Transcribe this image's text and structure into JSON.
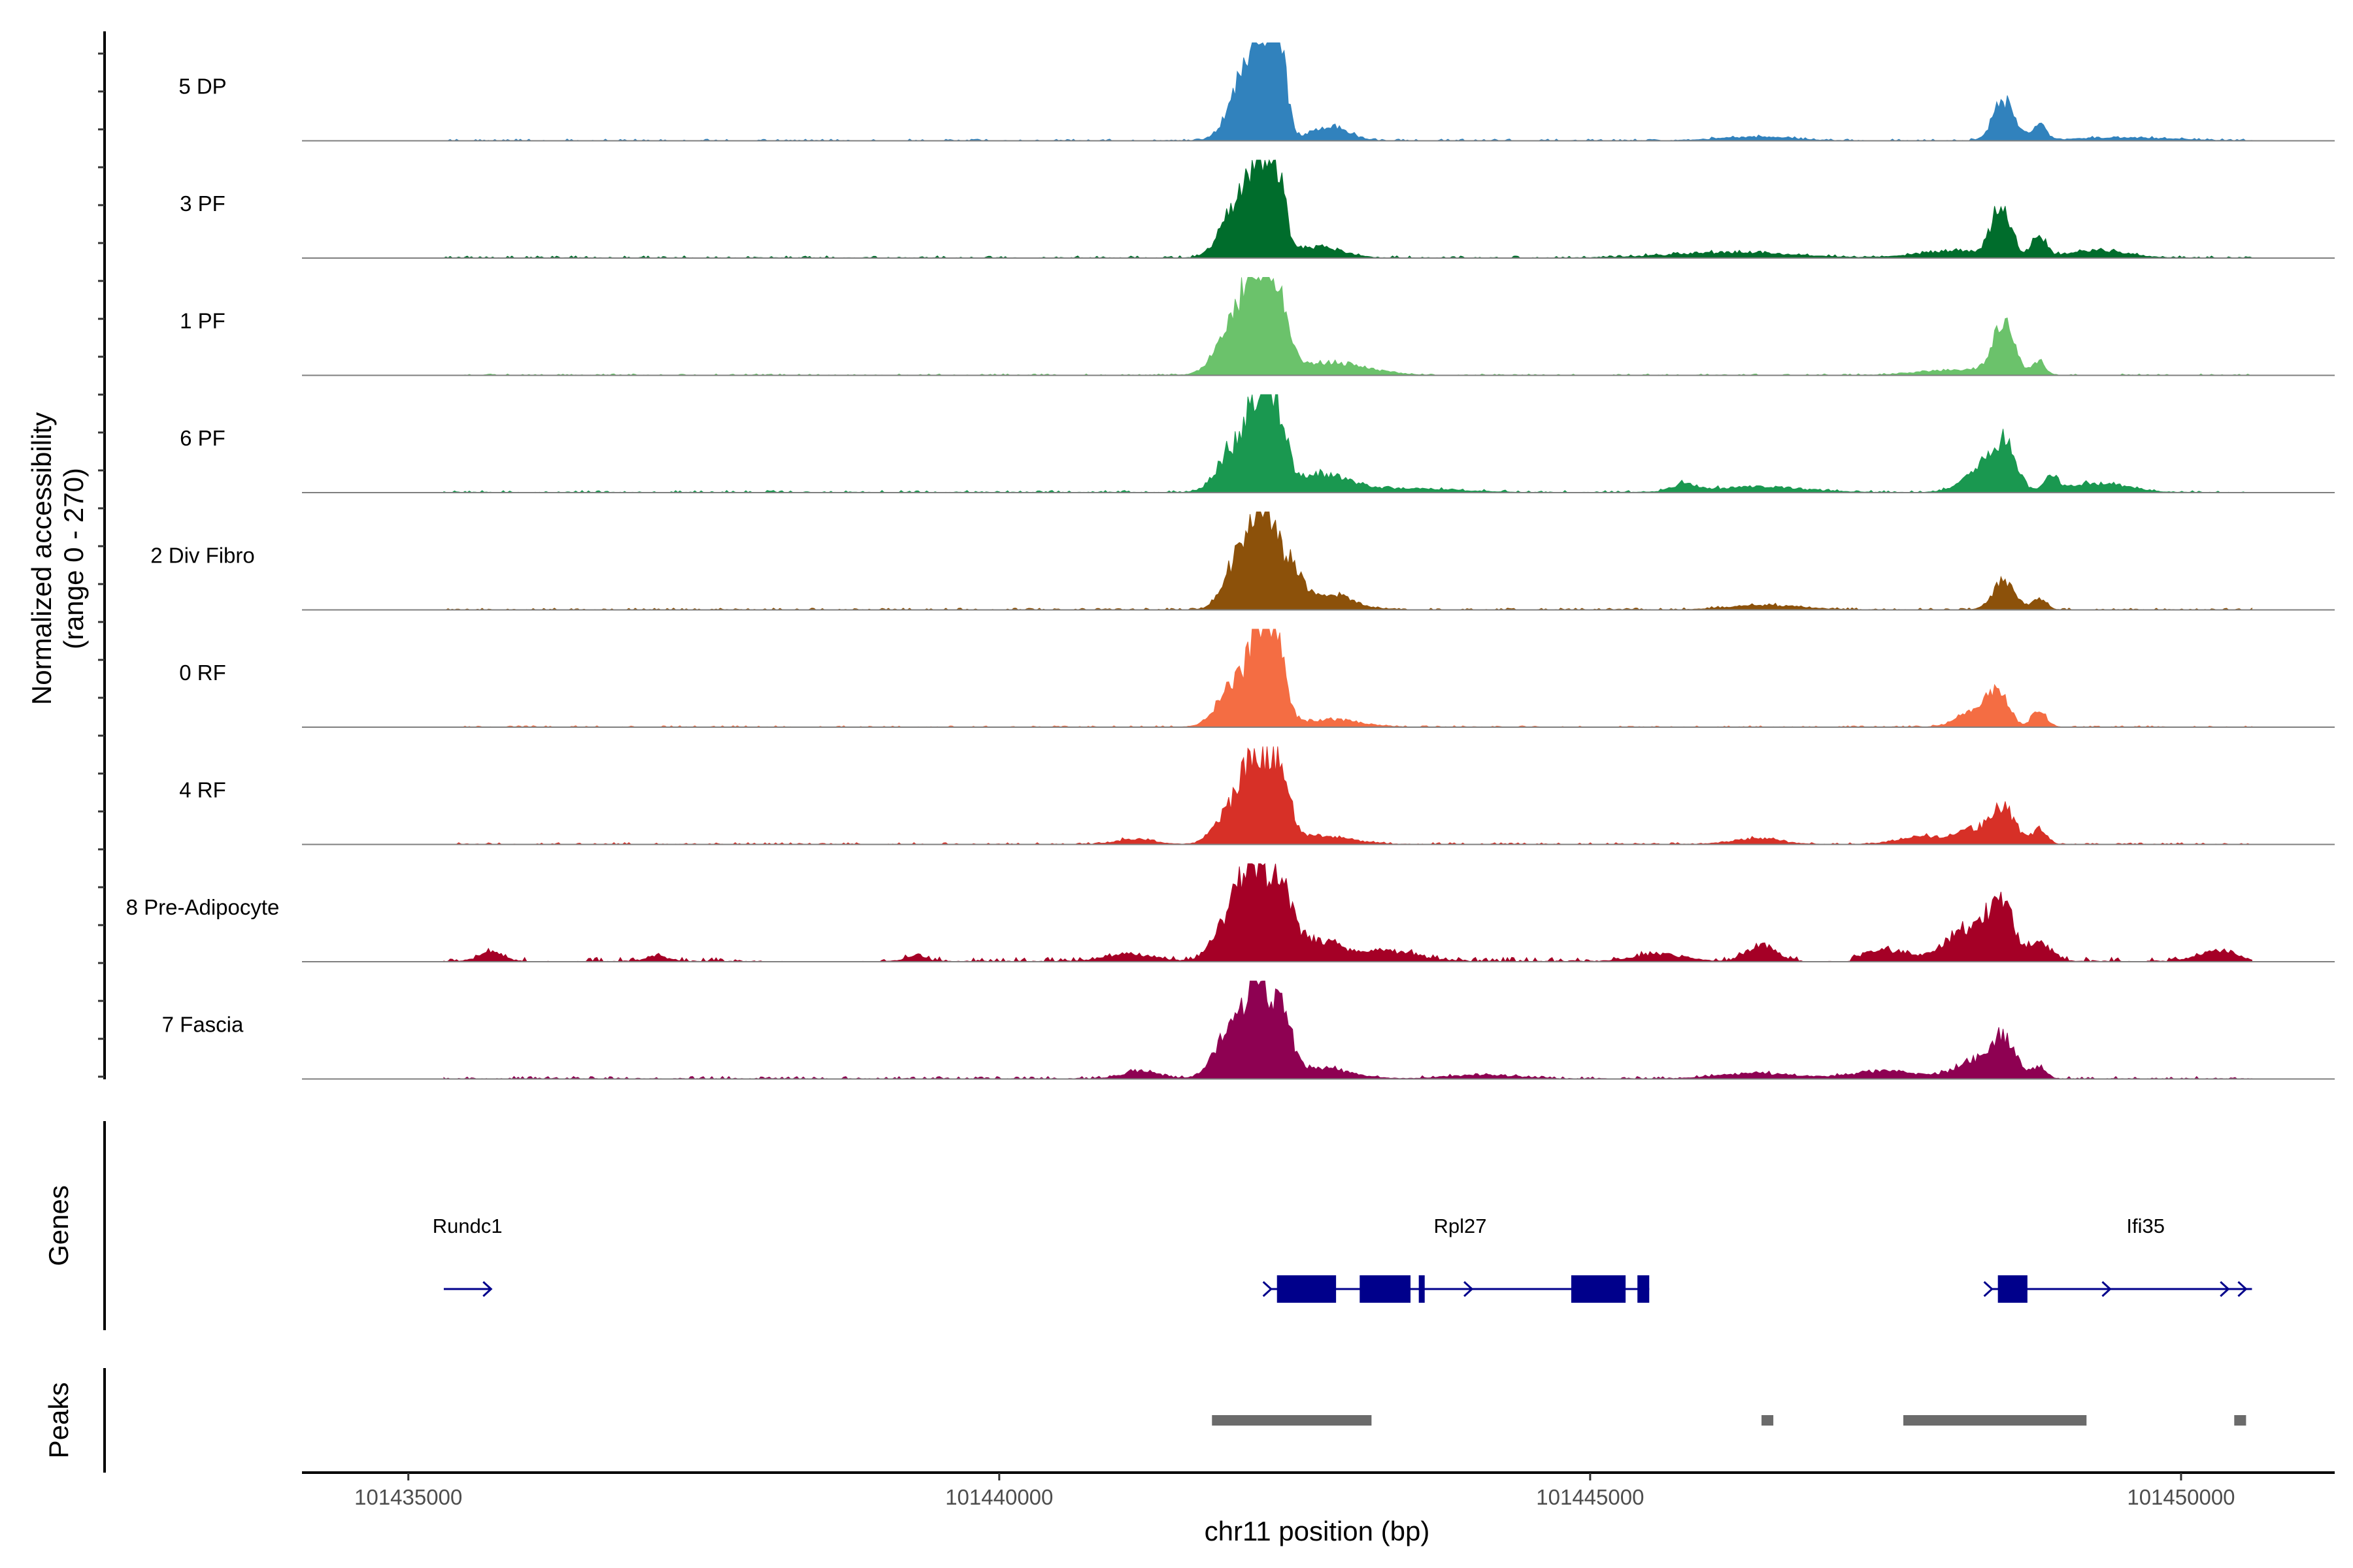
{
  "chart_data": {
    "type": "coverage-track",
    "xlabel": "chr11 position (bp)",
    "xlim": [
      101434100,
      101451300
    ],
    "x_ticks": [
      101435000,
      101440000,
      101445000,
      101450000
    ],
    "x_tick_labels": [
      "101435000",
      "101440000",
      "101445000",
      "101450000"
    ],
    "data_range": [
      101435300,
      101450600
    ],
    "ylabel_line1": "Normalized accessibility",
    "ylabel_line2": "(range 0 - 270)",
    "ylim": [
      0,
      270
    ],
    "y_minor_ticks": 28,
    "series": [
      {
        "name": "5 DP",
        "color": "#3182BD",
        "peaks": [
          [
            101442230,
            100,
            270
          ],
          [
            101442370,
            60,
            220
          ],
          [
            101442050,
            120,
            140
          ],
          [
            101442800,
            150,
            40
          ],
          [
            101448500,
            90,
            110
          ],
          [
            101448800,
            60,
            40
          ],
          [
            101446400,
            300,
            10
          ],
          [
            101449500,
            400,
            8
          ]
        ],
        "noise": 5,
        "gaps": []
      },
      {
        "name": "3 PF",
        "color": "#006D2C",
        "peaks": [
          [
            101442180,
            90,
            240
          ],
          [
            101442350,
            70,
            220
          ],
          [
            101441980,
            120,
            120
          ],
          [
            101442700,
            200,
            30
          ],
          [
            101448480,
            80,
            140
          ],
          [
            101448800,
            60,
            60
          ],
          [
            101448100,
            300,
            20
          ],
          [
            101446200,
            500,
            15
          ],
          [
            101449300,
            250,
            20
          ]
        ],
        "noise": 6,
        "gaps": []
      },
      {
        "name": "1 PF",
        "color": "#6BC26B",
        "peaks": [
          [
            101442170,
            110,
            250
          ],
          [
            101442350,
            90,
            200
          ],
          [
            101441950,
            130,
            110
          ],
          [
            101442800,
            300,
            35
          ],
          [
            101448500,
            90,
            140
          ],
          [
            101448800,
            50,
            40
          ],
          [
            101448100,
            300,
            15
          ]
        ],
        "noise": 4,
        "gaps": []
      },
      {
        "name": "6 PF",
        "color": "#1A9850",
        "peaks": [
          [
            101442200,
            90,
            240
          ],
          [
            101442350,
            80,
            180
          ],
          [
            101441980,
            130,
            120
          ],
          [
            101442700,
            250,
            50
          ],
          [
            101448500,
            100,
            120
          ],
          [
            101448300,
            150,
            60
          ],
          [
            101448900,
            60,
            40
          ],
          [
            101449300,
            250,
            25
          ],
          [
            101445800,
            100,
            20
          ],
          [
            101443500,
            400,
            10
          ],
          [
            101446400,
            400,
            15
          ]
        ],
        "noise": 6,
        "gaps": []
      },
      {
        "name": "2 Div Fibro",
        "color": "#8C510A",
        "peaks": [
          [
            101442240,
            90,
            270
          ],
          [
            101442040,
            120,
            150
          ],
          [
            101442450,
            100,
            120
          ],
          [
            101442800,
            200,
            40
          ],
          [
            101448500,
            90,
            80
          ],
          [
            101448800,
            60,
            30
          ],
          [
            101446500,
            300,
            12
          ]
        ],
        "noise": 5,
        "gaps": []
      },
      {
        "name": "0 RF",
        "color": "#F46D43",
        "peaks": [
          [
            101442200,
            90,
            240
          ],
          [
            101442350,
            80,
            200
          ],
          [
            101441980,
            130,
            110
          ],
          [
            101442800,
            250,
            20
          ],
          [
            101448450,
            90,
            90
          ],
          [
            101448250,
            140,
            40
          ],
          [
            101448800,
            60,
            45
          ]
        ],
        "noise": 4,
        "gaps": []
      },
      {
        "name": "4 RF",
        "color": "#D73027",
        "peaks": [
          [
            101442180,
            100,
            230
          ],
          [
            101442380,
            80,
            190
          ],
          [
            101441980,
            130,
            100
          ],
          [
            101442700,
            250,
            25
          ],
          [
            101448500,
            100,
            90
          ],
          [
            101448250,
            150,
            40
          ],
          [
            101448800,
            60,
            40
          ],
          [
            101447800,
            200,
            20
          ],
          [
            101446400,
            200,
            15
          ],
          [
            101441150,
            150,
            15
          ]
        ],
        "noise": 5,
        "gaps": []
      },
      {
        "name": "8 Pre-Adipocyte",
        "color": "#A50026",
        "peaks": [
          [
            101442130,
            90,
            230
          ],
          [
            101442350,
            100,
            190
          ],
          [
            101441950,
            130,
            120
          ],
          [
            101442600,
            250,
            60
          ],
          [
            101448480,
            100,
            150
          ],
          [
            101448200,
            180,
            90
          ],
          [
            101448800,
            100,
            50
          ],
          [
            101447500,
            200,
            30
          ],
          [
            101446450,
            120,
            45
          ],
          [
            101450300,
            150,
            30
          ],
          [
            101435700,
            100,
            25
          ],
          [
            101443300,
            250,
            25
          ],
          [
            101445600,
            200,
            20
          ],
          [
            101441100,
            200,
            20
          ],
          [
            101439300,
            80,
            15
          ],
          [
            101437100,
            80,
            15
          ]
        ],
        "noise": 12,
        "gaps": [
          [
            101436000,
            101436500
          ],
          [
            101438000,
            101439000
          ],
          [
            101446800,
            101447200
          ],
          [
            101449500,
            101449700
          ]
        ]
      },
      {
        "name": "7 Fascia",
        "color": "#8E0152",
        "peaks": [
          [
            101442200,
            100,
            240
          ],
          [
            101441980,
            140,
            140
          ],
          [
            101442400,
            80,
            150
          ],
          [
            101442700,
            250,
            30
          ],
          [
            101448500,
            100,
            110
          ],
          [
            101448250,
            150,
            50
          ],
          [
            101448800,
            60,
            30
          ],
          [
            101441200,
            150,
            20
          ],
          [
            101447500,
            300,
            20
          ],
          [
            101446400,
            300,
            15
          ],
          [
            101444100,
            300,
            10
          ]
        ],
        "noise": 7,
        "gaps": []
      }
    ],
    "genes_track_label": "Genes",
    "genes": [
      {
        "name": "Rundc1",
        "label_x": 101435500,
        "span": [
          101435300,
          101435700
        ],
        "strand": "+",
        "arrows": [
          101435700
        ],
        "exons": []
      },
      {
        "name": "Rpl27",
        "label_x": 101443900,
        "span": [
          101442300,
          101445500
        ],
        "strand": "+",
        "arrows": [
          101442300,
          101443300,
          101444000
        ],
        "exons": [
          [
            101442350,
            101442850
          ],
          [
            101443050,
            101443480
          ],
          [
            101443550,
            101443600
          ],
          [
            101444840,
            101445300
          ],
          [
            101445400,
            101445500
          ]
        ]
      },
      {
        "name": "Ifi35",
        "label_x": 101449700,
        "span": [
          101448400,
          101450600
        ],
        "strand": "+",
        "arrows": [
          101448400,
          101449400,
          101450400,
          101450550
        ],
        "exons": [
          [
            101448450,
            101448700
          ]
        ]
      }
    ],
    "peaks_track_label": "Peaks",
    "peak_regions": [
      [
        101441800,
        101443150
      ],
      [
        101446450,
        101446550
      ],
      [
        101447650,
        101449200
      ],
      [
        101450450,
        101450550
      ]
    ],
    "peak_color": "#6B6B6B",
    "gene_color": "#00008B"
  }
}
